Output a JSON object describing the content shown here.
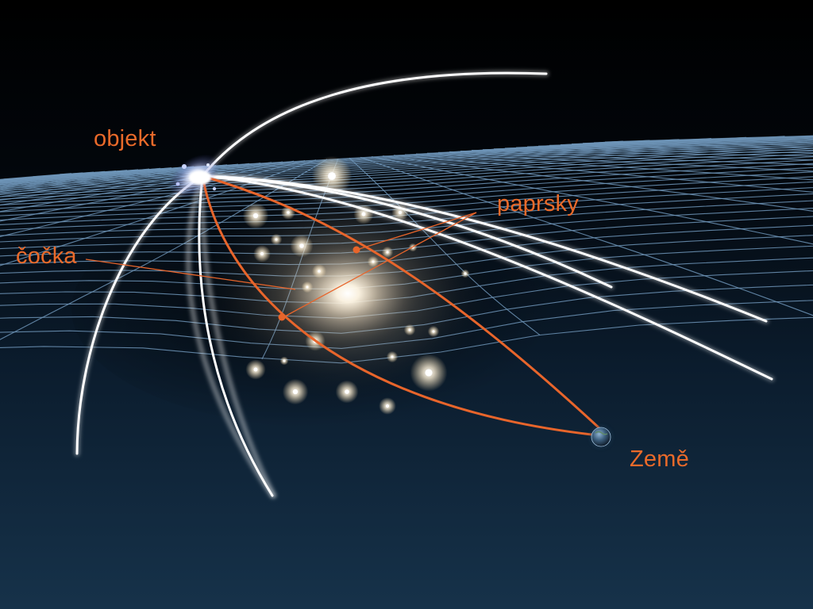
{
  "colors": {
    "background": "#000000",
    "grid": "#6f95b8",
    "light_ray": "#ffffff",
    "highlighted_ray": "#e8652b",
    "label": "#ea6a2a"
  },
  "labels": {
    "object": "objekt",
    "rays": "paprsky",
    "lens": "čočka",
    "earth": "Země"
  }
}
